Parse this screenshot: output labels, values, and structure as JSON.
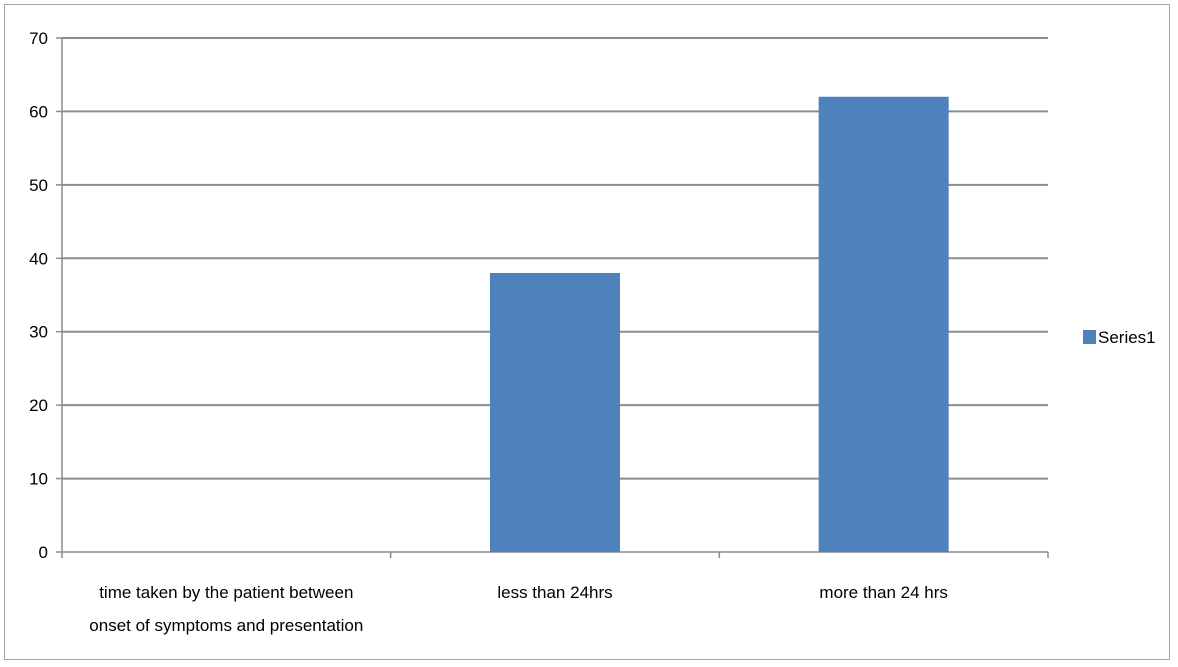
{
  "chart_data": {
    "type": "bar",
    "categories": [
      [
        "time taken by the patient between",
        "onset of symptoms and presentation"
      ],
      [
        "less than 24hrs"
      ],
      [
        "more than 24 hrs"
      ]
    ],
    "series": [
      {
        "name": "Series1",
        "values": [
          null,
          38,
          62
        ],
        "color": "#4f81bd"
      }
    ],
    "ylim": [
      0,
      70
    ],
    "yticks": [
      0,
      10,
      20,
      30,
      40,
      50,
      60,
      70
    ],
    "grid": true,
    "legend": "right",
    "title": "",
    "xlabel": "",
    "ylabel": ""
  }
}
